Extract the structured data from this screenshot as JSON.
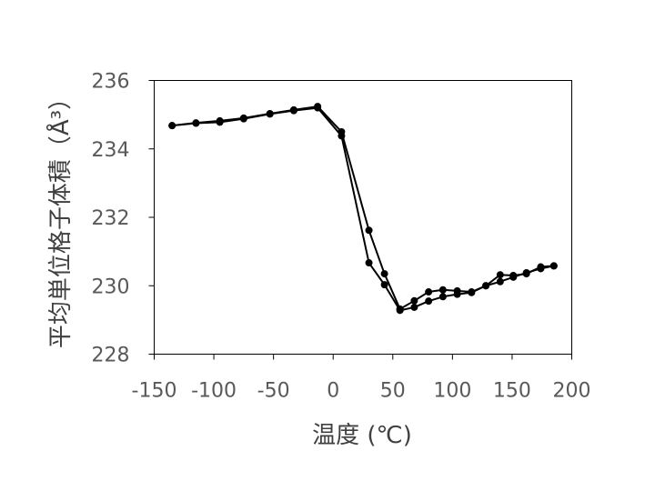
{
  "chart_data": {
    "type": "line",
    "title": "",
    "xlabel": "温度 (℃)",
    "ylabel": "平均単位格子体積（Å³）",
    "xlim": [
      -150,
      200
    ],
    "ylim": [
      228,
      236
    ],
    "x_ticks": [
      "-150",
      "-100",
      "-50",
      "0",
      "50",
      "100",
      "150",
      "200"
    ],
    "y_ticks": [
      "228",
      "230",
      "232",
      "234",
      "236"
    ],
    "grid": false,
    "legend": "none",
    "series": [
      {
        "color": "#000000",
        "points": [
          [
            -135,
            234.68
          ],
          [
            -115,
            234.76
          ],
          [
            -95,
            234.82
          ],
          [
            -75,
            234.9
          ],
          [
            -53,
            235.03
          ],
          [
            -33,
            235.14
          ],
          [
            -13,
            235.24
          ],
          [
            7,
            234.5
          ],
          [
            30,
            231.62
          ],
          [
            43,
            230.35
          ],
          [
            56,
            229.32
          ],
          [
            68,
            229.56
          ],
          [
            80,
            229.82
          ],
          [
            92,
            229.88
          ],
          [
            104,
            229.85
          ],
          [
            116,
            229.82
          ],
          [
            128,
            230.0
          ],
          [
            140,
            230.32
          ],
          [
            151,
            230.3
          ],
          [
            162,
            230.35
          ],
          [
            174,
            230.55
          ],
          [
            185,
            230.58
          ]
        ]
      },
      {
        "color": "#000000",
        "points": [
          [
            185,
            230.58
          ],
          [
            174,
            230.5
          ],
          [
            162,
            230.38
          ],
          [
            151,
            230.25
          ],
          [
            140,
            230.12
          ],
          [
            128,
            230.0
          ],
          [
            116,
            229.8
          ],
          [
            104,
            229.75
          ],
          [
            92,
            229.68
          ],
          [
            80,
            229.55
          ],
          [
            68,
            229.37
          ],
          [
            56,
            229.28
          ],
          [
            43,
            230.03
          ],
          [
            30,
            230.67
          ],
          [
            7,
            234.38
          ],
          [
            -13,
            235.2
          ],
          [
            -33,
            235.12
          ],
          [
            -53,
            235.02
          ],
          [
            -75,
            234.88
          ],
          [
            -95,
            234.78
          ],
          [
            -115,
            234.75
          ],
          [
            -135,
            234.68
          ]
        ]
      }
    ]
  }
}
